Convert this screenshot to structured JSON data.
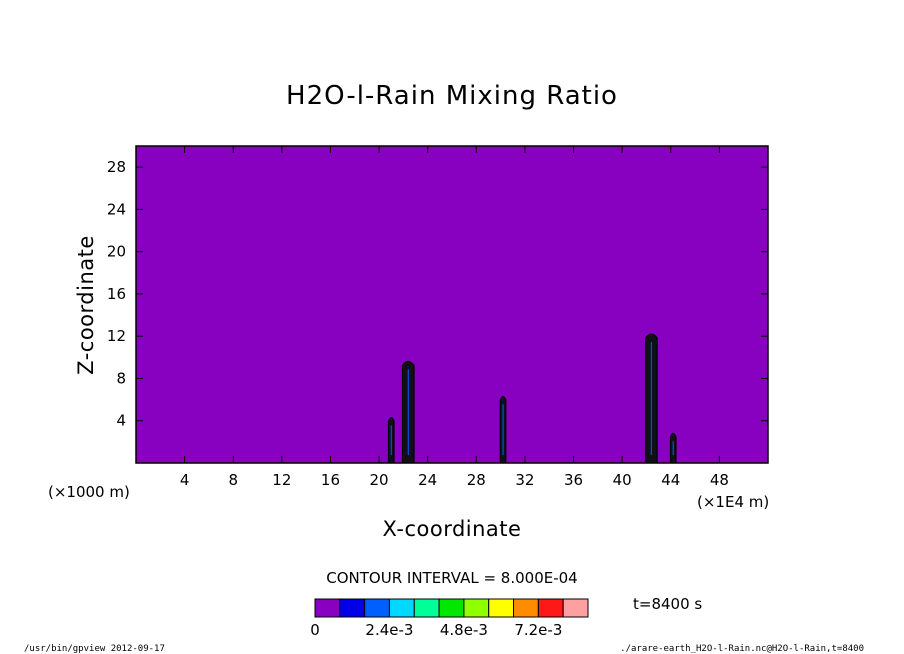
{
  "chart_data": {
    "type": "heatmap",
    "title": "H2O-l-Rain Mixing Ratio",
    "xlabel": "X-coordinate",
    "ylabel": "Z-coordinate",
    "x_unit_left": "(×1000 m)",
    "x_unit_right": "(×1E4 m)",
    "xlim": [
      0,
      52
    ],
    "ylim": [
      0,
      30
    ],
    "x_ticks": [
      "4",
      "8",
      "12",
      "16",
      "20",
      "24",
      "28",
      "32",
      "36",
      "40",
      "44",
      "48"
    ],
    "y_ticks": [
      "4",
      "8",
      "12",
      "16",
      "20",
      "24",
      "28"
    ],
    "x_tick_values": [
      4,
      8,
      12,
      16,
      20,
      24,
      28,
      32,
      36,
      40,
      44,
      48
    ],
    "y_tick_values": [
      4,
      8,
      12,
      16,
      20,
      24,
      28
    ],
    "contour_interval": "CONTOUR INTERVAL = 8.000E-04",
    "time_label": "t=8400 s",
    "colorbar": {
      "colors": [
        "#8800c0",
        "#0000e8",
        "#0060ff",
        "#00d8ff",
        "#00ff98",
        "#00e800",
        "#90ff00",
        "#ffff00",
        "#ff8c00",
        "#ff1818",
        "#ffa0a0"
      ],
      "labels": [
        "0",
        "2.4e-3",
        "4.8e-3",
        "7.2e-3"
      ],
      "label_positions": [
        0,
        3,
        6,
        9
      ]
    },
    "background_color": "#8800c0",
    "features": [
      {
        "x": 22.4,
        "z_top": 9.8,
        "width": 0.8
      },
      {
        "x": 21.0,
        "z_top": 4.5,
        "width": 0.3
      },
      {
        "x": 30.2,
        "z_top": 6.5,
        "width": 0.3
      },
      {
        "x": 42.4,
        "z_top": 12.4,
        "width": 0.8
      },
      {
        "x": 44.2,
        "z_top": 3.0,
        "width": 0.3
      }
    ]
  },
  "footer": {
    "left": "/usr/bin/gpview  2012-09-17",
    "right": "./arare-earth_H2O-l-Rain.nc@H2O-l-Rain,t=8400"
  }
}
